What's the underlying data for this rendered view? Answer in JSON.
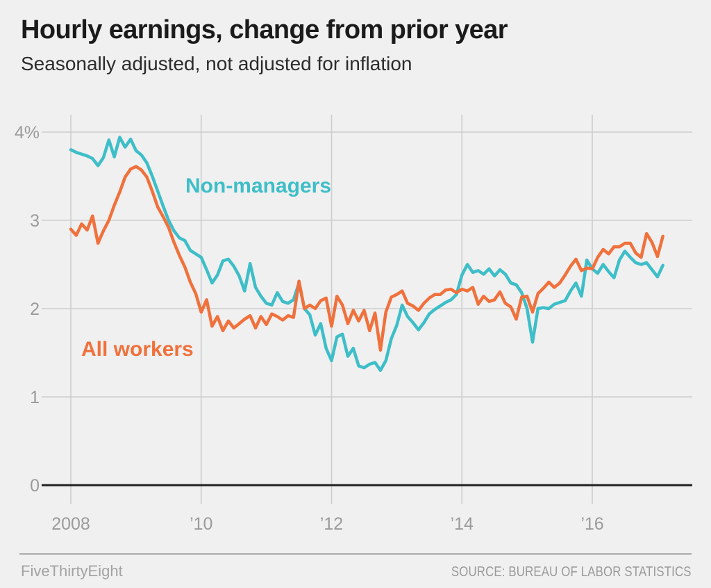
{
  "header": {
    "title": "Hourly earnings, change from prior year",
    "subtitle": "Seasonally adjusted, not adjusted for inflation"
  },
  "footer": {
    "brand": "FiveThirtyEight",
    "source": "SOURCE: BUREAU OF LABOR STATISTICS"
  },
  "colors": {
    "background": "#f0f0f0",
    "gridline": "#cdcdcd",
    "zero_line": "#222222",
    "tick_text": "#9b9b9b",
    "title_text": "#1b1b1b",
    "footer_text": "#a3a3a3"
  },
  "chart_data": {
    "type": "line",
    "title": "Hourly earnings, change from prior year",
    "subtitle": "Seasonally adjusted, not adjusted for inflation",
    "unit": "percent",
    "frequency": "monthly",
    "start": "2008-01",
    "end": "2017-02",
    "ylim": [
      0,
      4
    ],
    "grid": true,
    "legend_position": "inline-labels",
    "y_ticks": [
      {
        "label": "4%",
        "value": 4
      },
      {
        "label": "3",
        "value": 3
      },
      {
        "label": "2",
        "value": 2
      },
      {
        "label": "1",
        "value": 1
      },
      {
        "label": "0",
        "value": 0
      }
    ],
    "x_ticks": [
      {
        "label": "2008",
        "month_index": 0
      },
      {
        "label": "’10",
        "month_index": 24
      },
      {
        "label": "’12",
        "month_index": 48
      },
      {
        "label": "’14",
        "month_index": 72
      },
      {
        "label": "’16",
        "month_index": 96
      }
    ],
    "series": [
      {
        "name": "Non-managers",
        "color": "#3ebec8",
        "values": [
          3.8,
          3.77,
          3.75,
          3.73,
          3.7,
          3.62,
          3.71,
          3.91,
          3.72,
          3.94,
          3.83,
          3.92,
          3.79,
          3.74,
          3.65,
          3.5,
          3.33,
          3.16,
          3.0,
          2.88,
          2.8,
          2.77,
          2.66,
          2.62,
          2.58,
          2.44,
          2.29,
          2.38,
          2.54,
          2.56,
          2.48,
          2.37,
          2.2,
          2.51,
          2.24,
          2.14,
          2.06,
          2.04,
          2.18,
          2.08,
          2.06,
          2.1,
          2.29,
          2.0,
          1.93,
          1.7,
          1.83,
          1.55,
          1.41,
          1.68,
          1.71,
          1.46,
          1.55,
          1.35,
          1.33,
          1.37,
          1.39,
          1.3,
          1.41,
          1.66,
          1.81,
          2.04,
          1.91,
          1.84,
          1.76,
          1.84,
          1.94,
          1.99,
          2.03,
          2.07,
          2.1,
          2.16,
          2.38,
          2.5,
          2.41,
          2.43,
          2.39,
          2.45,
          2.37,
          2.44,
          2.39,
          2.29,
          2.27,
          2.18,
          2.0,
          1.62,
          2.0,
          2.01,
          2.0,
          2.05,
          2.07,
          2.09,
          2.2,
          2.29,
          2.14,
          2.55,
          2.45,
          2.4,
          2.5,
          2.42,
          2.35,
          2.55,
          2.65,
          2.58,
          2.52,
          2.5,
          2.52,
          2.44,
          2.36,
          2.49
        ]
      },
      {
        "name": "All workers",
        "color": "#f0713c",
        "values": [
          2.9,
          2.83,
          2.96,
          2.89,
          3.05,
          2.74,
          2.88,
          3.0,
          3.17,
          3.32,
          3.49,
          3.58,
          3.61,
          3.57,
          3.49,
          3.33,
          3.15,
          3.04,
          2.92,
          2.75,
          2.6,
          2.47,
          2.3,
          2.17,
          1.96,
          2.1,
          1.8,
          1.91,
          1.75,
          1.86,
          1.78,
          1.83,
          1.88,
          1.92,
          1.78,
          1.91,
          1.82,
          1.94,
          1.91,
          1.87,
          1.92,
          1.9,
          2.31,
          2.0,
          2.04,
          2.0,
          2.09,
          2.12,
          1.8,
          2.14,
          2.04,
          1.83,
          1.98,
          1.86,
          1.98,
          1.75,
          1.95,
          1.53,
          1.96,
          2.13,
          2.16,
          2.2,
          2.06,
          2.03,
          1.98,
          2.06,
          2.12,
          2.16,
          2.16,
          2.21,
          2.22,
          2.18,
          2.22,
          2.2,
          2.24,
          2.05,
          2.14,
          2.08,
          2.1,
          2.19,
          2.06,
          2.02,
          1.88,
          2.13,
          2.14,
          1.96,
          2.17,
          2.23,
          2.3,
          2.24,
          2.29,
          2.38,
          2.48,
          2.56,
          2.43,
          2.46,
          2.45,
          2.58,
          2.67,
          2.62,
          2.7,
          2.7,
          2.74,
          2.74,
          2.63,
          2.58,
          2.85,
          2.75,
          2.59,
          2.82
        ]
      }
    ]
  }
}
